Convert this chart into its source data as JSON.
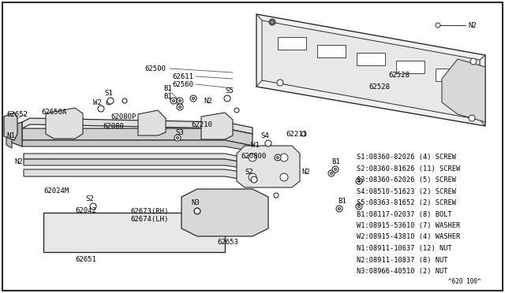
{
  "bg_color": "#ffffff",
  "line_color": "#2a2a2a",
  "legend_lines": [
    "S1:08360-82026 (4) SCREW",
    "S2:08360-81626 (11) SCREW",
    "S3:08360-62026 (5) SCREW",
    "S4:08510-51623 (2) SCREW",
    "S5:08363-81652 (2) SCREW",
    "B1:08117-02037 (8) BOLT",
    "W1:08915-53610 (7) WASHER",
    "W2:08915-43810 (4) WASHER",
    "N1:08911-10637 (12) NUT",
    "N2:08911-10837 (8) NUT",
    "N3:08966-40510 (2) NUT"
  ],
  "footer": "^620 100^"
}
